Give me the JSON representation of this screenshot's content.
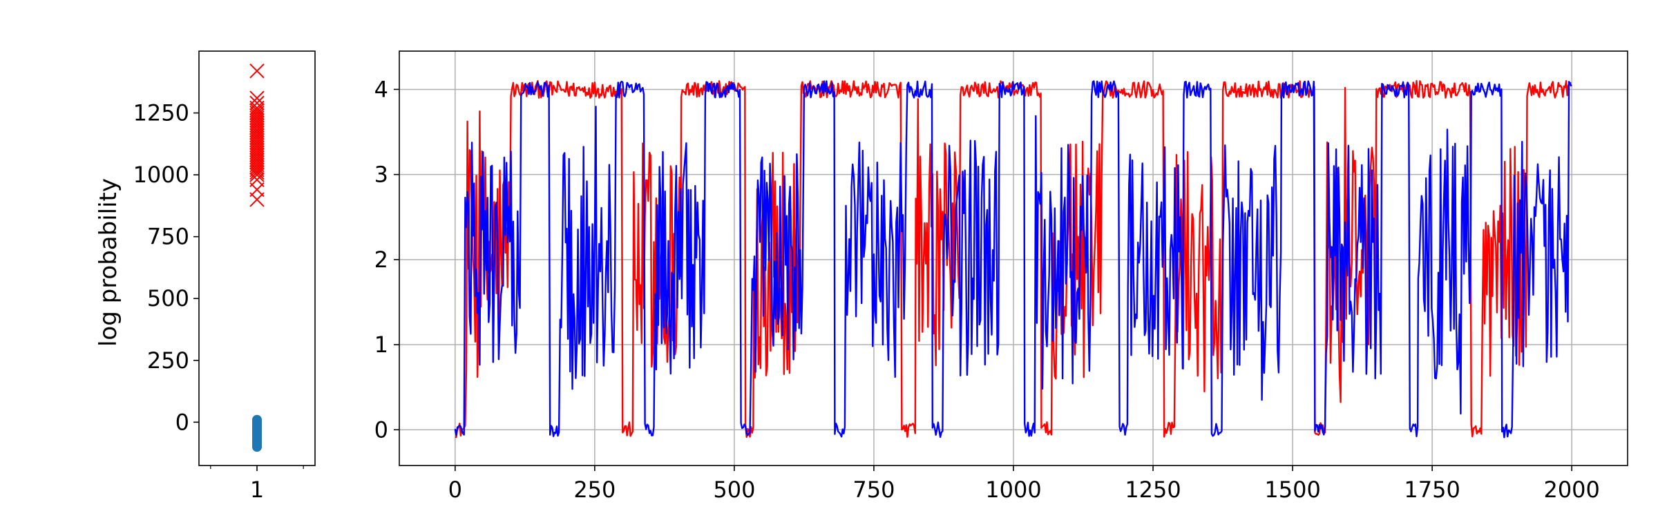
{
  "chart_data": [
    {
      "type": "scatter",
      "ylabel": "log probability",
      "xticks": [
        1
      ],
      "xlim": [
        0.5,
        1.5
      ],
      "yticks": [
        0,
        250,
        500,
        750,
        1000,
        1250
      ],
      "ylim": [
        -175,
        1500
      ],
      "grid": false,
      "series": [
        {
          "marker": "x",
          "color": "#ff0000",
          "x": 1,
          "values": [
            1420,
            1310,
            1290,
            1270,
            1260,
            1250,
            1240,
            1230,
            1220,
            1210,
            1200,
            1190,
            1180,
            1170,
            1160,
            1150,
            1140,
            1130,
            1120,
            1110,
            1100,
            1090,
            1080,
            1070,
            1060,
            1050,
            1040,
            1030,
            1020,
            1010,
            1000,
            980,
            940,
            900
          ]
        },
        {
          "marker": "o",
          "color": "#1f77b4",
          "x": 1,
          "values": [
            10,
            5,
            0,
            -5,
            -10,
            -15,
            -20,
            -25,
            -30,
            -35,
            -40,
            -45,
            -50,
            -55,
            -60,
            -65,
            -70,
            -75,
            -80,
            -85,
            -90,
            -95,
            -100
          ]
        }
      ]
    },
    {
      "type": "line",
      "xlim": [
        -100,
        2100
      ],
      "ylim": [
        -0.42,
        4.45
      ],
      "xticks": [
        0,
        250,
        500,
        750,
        1000,
        1250,
        1500,
        1750,
        2000
      ],
      "yticks": [
        0,
        1,
        2,
        3,
        4
      ],
      "grid": true,
      "series": [
        {
          "color": "#ff0000",
          "segments": [
            [
              0,
              20,
              "0"
            ],
            [
              20,
              100,
              "mix"
            ],
            [
              100,
              300,
              "4"
            ],
            [
              300,
              320,
              "0"
            ],
            [
              320,
              405,
              "mix"
            ],
            [
              405,
              520,
              "4"
            ],
            [
              520,
              535,
              "0"
            ],
            [
              535,
              620,
              "mix"
            ],
            [
              620,
              800,
              "4"
            ],
            [
              800,
              825,
              "0"
            ],
            [
              825,
              905,
              "mix"
            ],
            [
              905,
              1050,
              "4"
            ],
            [
              1050,
              1070,
              "0"
            ],
            [
              1070,
              1160,
              "mix"
            ],
            [
              1160,
              1270,
              "4"
            ],
            [
              1270,
              1290,
              "0"
            ],
            [
              1290,
              1375,
              "mix"
            ],
            [
              1375,
              1540,
              "4"
            ],
            [
              1540,
              1560,
              "0"
            ],
            [
              1560,
              1650,
              "mix"
            ],
            [
              1650,
              1820,
              "4"
            ],
            [
              1820,
              1840,
              "0"
            ],
            [
              1840,
              1920,
              "mix"
            ],
            [
              1920,
              2000,
              "4"
            ]
          ]
        },
        {
          "color": "#0000ff",
          "segments": [
            [
              0,
              18,
              "0"
            ],
            [
              18,
              118,
              "mix"
            ],
            [
              118,
              170,
              "4"
            ],
            [
              170,
              188,
              "0"
            ],
            [
              188,
              288,
              "mix"
            ],
            [
              288,
              340,
              "4"
            ],
            [
              340,
              358,
              "0"
            ],
            [
              358,
              448,
              "mix"
            ],
            [
              448,
              512,
              "4"
            ],
            [
              512,
              530,
              "0"
            ],
            [
              530,
              625,
              "mix"
            ],
            [
              625,
              680,
              "4"
            ],
            [
              680,
              700,
              "0"
            ],
            [
              700,
              810,
              "mix"
            ],
            [
              810,
              855,
              "4"
            ],
            [
              855,
              875,
              "0"
            ],
            [
              875,
              975,
              "mix"
            ],
            [
              975,
              1020,
              "4"
            ],
            [
              1020,
              1040,
              "0"
            ],
            [
              1040,
              1140,
              "mix"
            ],
            [
              1140,
              1190,
              "4"
            ],
            [
              1190,
              1205,
              "0"
            ],
            [
              1205,
              1305,
              "mix"
            ],
            [
              1305,
              1355,
              "4"
            ],
            [
              1355,
              1375,
              "0"
            ],
            [
              1375,
              1480,
              "mix"
            ],
            [
              1480,
              1540,
              "4"
            ],
            [
              1540,
              1560,
              "0"
            ],
            [
              1560,
              1660,
              "mix"
            ],
            [
              1660,
              1710,
              "4"
            ],
            [
              1710,
              1725,
              "0"
            ],
            [
              1725,
              1820,
              "mix"
            ],
            [
              1820,
              1875,
              "4"
            ],
            [
              1875,
              1895,
              "0"
            ],
            [
              1895,
              1995,
              "mix"
            ],
            [
              1995,
              2000,
              "4"
            ]
          ]
        }
      ]
    }
  ]
}
